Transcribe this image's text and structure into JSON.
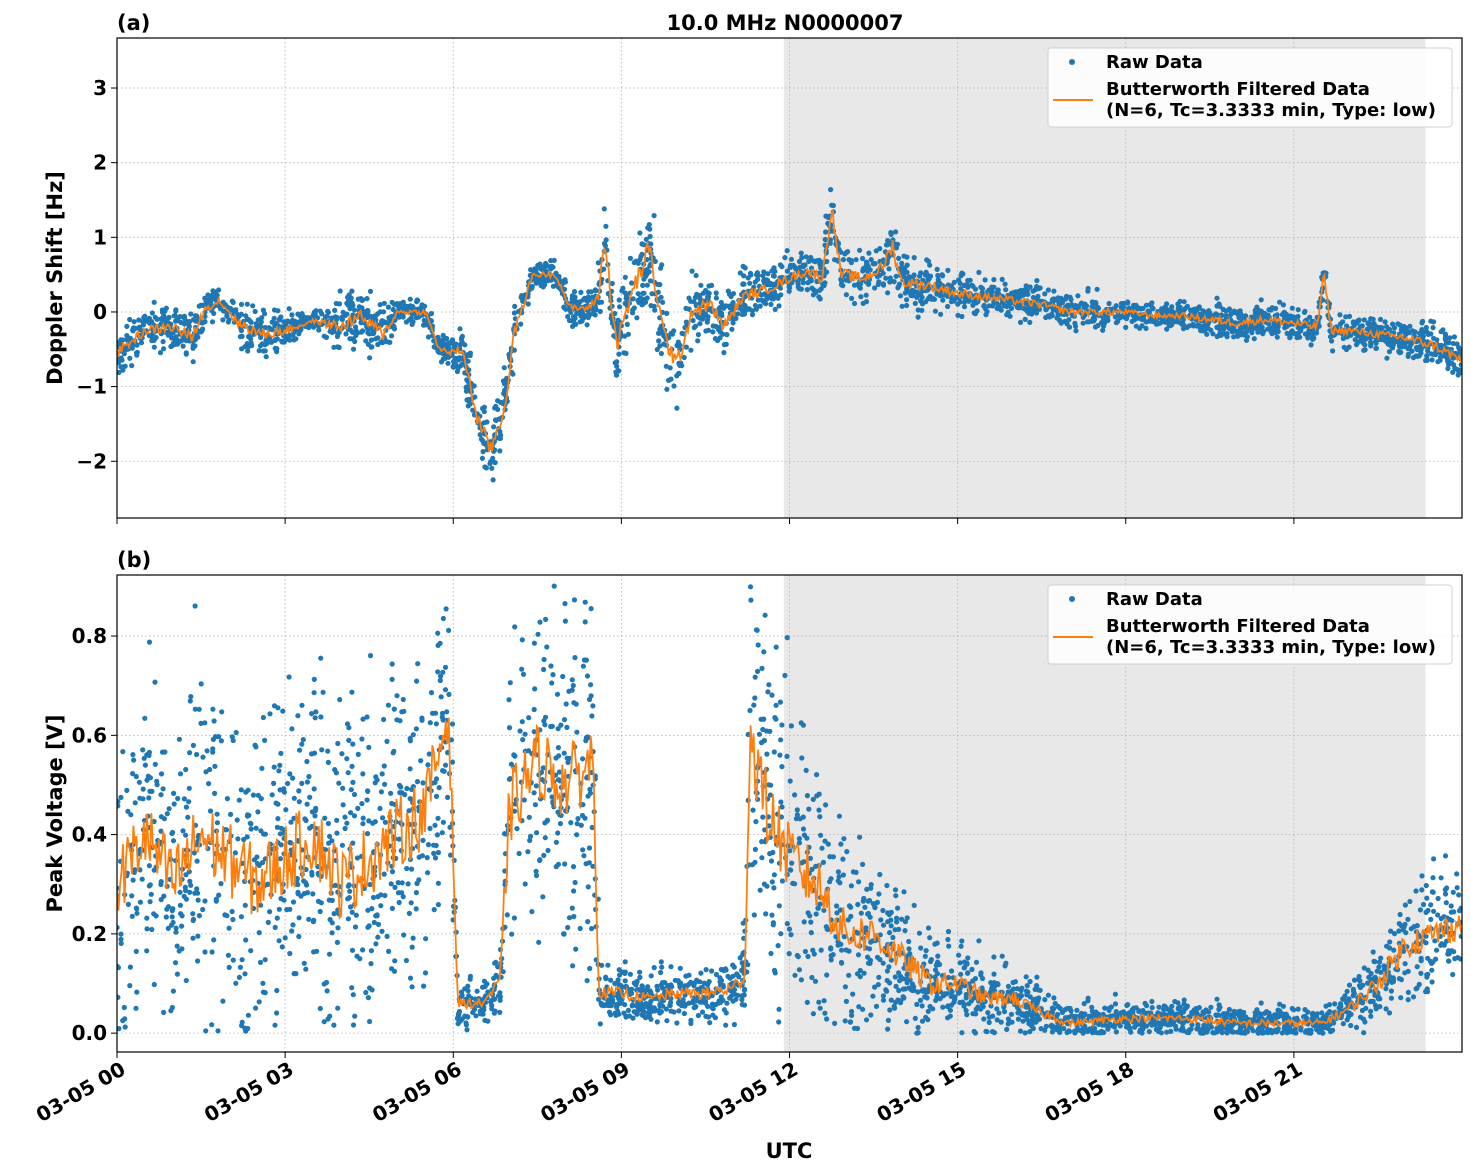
{
  "title": "10.0 MHz N0000007",
  "xlabel": "UTC",
  "date": "03-05",
  "xticks": [
    "03-05 00",
    "03-05 03",
    "03-05 06",
    "03-05 09",
    "03-05 12",
    "03-05 15",
    "03-05 18",
    "03-05 21"
  ],
  "colors": {
    "raw": "#1f77b4",
    "filtered": "#ff7f0e",
    "shade": "#e8e8e8"
  },
  "chart_data": [
    {
      "type": "scatter+line",
      "panel_label": "(a)",
      "ylabel": "Doppler Shift [Hz]",
      "ylim": [
        -2.76,
        3.67
      ],
      "yticks": [
        -2,
        -1,
        0,
        1,
        2,
        3
      ],
      "ytick_labels": [
        "−2",
        "−1",
        "0",
        "1",
        "2",
        "3"
      ],
      "xlim": [
        "00:00",
        "24:00"
      ],
      "grid": true,
      "shaded_region": [
        "11:54",
        "23:21"
      ],
      "legend": {
        "placement": "top-right",
        "entries": [
          "Raw Data",
          "Butterworth Filtered Data",
          "(N=6, Tc=3.3333 min, Type: low)"
        ]
      },
      "series": [
        {
          "name": "Butterworth Filtered Data (N=6, Tc=3.3333 min, Type: low)",
          "x": [
            "00:00",
            "00:30",
            "01:00",
            "01:20",
            "01:35",
            "01:50",
            "02:10",
            "02:35",
            "03:00",
            "03:30",
            "04:00",
            "04:20",
            "04:45",
            "05:00",
            "05:30",
            "05:45",
            "06:00",
            "06:10",
            "06:25",
            "06:40",
            "06:55",
            "07:05",
            "07:25",
            "07:50",
            "08:05",
            "08:25",
            "08:35",
            "08:42",
            "08:55",
            "09:10",
            "09:30",
            "09:45",
            "10:00",
            "10:15",
            "10:35",
            "10:50",
            "11:10",
            "11:35",
            "12:00",
            "12:20",
            "12:35",
            "12:45",
            "12:55",
            "13:20",
            "13:40",
            "13:50",
            "14:00",
            "14:30",
            "15:00",
            "15:30",
            "16:00",
            "16:30",
            "17:00",
            "17:30",
            "18:00",
            "18:30",
            "19:00",
            "19:30",
            "20:00",
            "20:30",
            "21:00",
            "21:25",
            "21:32",
            "21:40",
            "22:00",
            "22:30",
            "23:00",
            "23:30",
            "24:00"
          ],
          "y": [
            -0.55,
            -0.25,
            -0.2,
            -0.35,
            0.05,
            0.15,
            -0.15,
            -0.3,
            -0.25,
            -0.12,
            -0.2,
            -0.05,
            -0.3,
            0.0,
            0.0,
            -0.5,
            -0.55,
            -0.5,
            -1.4,
            -1.85,
            -1.3,
            -0.3,
            0.5,
            0.5,
            0.05,
            0.05,
            0.2,
            0.95,
            -0.45,
            0.2,
            0.85,
            -0.3,
            -0.7,
            0.0,
            0.1,
            -0.2,
            0.2,
            0.3,
            0.45,
            0.55,
            0.45,
            1.4,
            0.5,
            0.45,
            0.6,
            0.9,
            0.4,
            0.35,
            0.25,
            0.2,
            0.15,
            0.1,
            0.0,
            0.0,
            0.0,
            -0.05,
            -0.05,
            -0.1,
            -0.15,
            -0.1,
            -0.15,
            -0.2,
            0.5,
            -0.25,
            -0.25,
            -0.3,
            -0.35,
            -0.45,
            -0.65
          ]
        },
        {
          "name": "Raw Data",
          "spread": [
            0.25,
            0.25,
            0.3,
            0.3,
            0.2,
            0.2,
            0.25,
            0.3,
            0.25,
            0.1,
            0.35,
            0.3,
            0.35,
            0.15,
            0.15,
            0.15,
            0.2,
            0.25,
            0.4,
            0.45,
            0.35,
            0.3,
            0.15,
            0.15,
            0.2,
            0.15,
            0.25,
            0.6,
            0.5,
            0.6,
            0.6,
            0.6,
            0.5,
            0.4,
            0.35,
            0.35,
            0.3,
            0.25,
            0.25,
            0.25,
            0.3,
            0.4,
            0.35,
            0.3,
            0.3,
            0.5,
            0.3,
            0.3,
            0.25,
            0.2,
            0.2,
            0.2,
            0.2,
            0.2,
            0.15,
            0.15,
            0.15,
            0.2,
            0.2,
            0.2,
            0.2,
            0.2,
            0.3,
            0.2,
            0.2,
            0.2,
            0.25,
            0.25,
            0.3
          ]
        }
      ]
    },
    {
      "type": "scatter+line",
      "panel_label": "(b)",
      "ylabel": "Peak Voltage [V]",
      "ylim": [
        -0.038,
        0.923
      ],
      "yticks": [
        0.0,
        0.2,
        0.4,
        0.6,
        0.8
      ],
      "ytick_labels": [
        "0.0",
        "0.2",
        "0.4",
        "0.6",
        "0.8"
      ],
      "xlim": [
        "00:00",
        "24:00"
      ],
      "grid": true,
      "shaded_region": [
        "11:54",
        "23:21"
      ],
      "legend": {
        "placement": "top-right",
        "entries": [
          "Raw Data",
          "Butterworth Filtered Data",
          "(N=6, Tc=3.3333 min, Type: low)"
        ]
      },
      "series": [
        {
          "name": "Butterworth Filtered Data (N=6, Tc=3.3333 min, Type: low)",
          "x": [
            "00:00",
            "00:30",
            "01:00",
            "01:30",
            "02:00",
            "02:30",
            "03:00",
            "03:30",
            "04:00",
            "04:30",
            "05:00",
            "05:30",
            "05:55",
            "06:05",
            "06:30",
            "06:50",
            "07:00",
            "07:30",
            "08:00",
            "08:30",
            "08:36",
            "09:00",
            "09:30",
            "10:00",
            "10:30",
            "11:00",
            "11:12",
            "11:18",
            "11:36",
            "12:00",
            "12:30",
            "13:00",
            "13:30",
            "14:00",
            "14:30",
            "15:00",
            "15:30",
            "16:00",
            "16:30",
            "17:00",
            "18:00",
            "19:00",
            "20:00",
            "21:00",
            "21:30",
            "22:00",
            "22:30",
            "23:00",
            "23:30",
            "24:00"
          ],
          "y": [
            0.3,
            0.4,
            0.3,
            0.4,
            0.35,
            0.3,
            0.35,
            0.4,
            0.3,
            0.35,
            0.4,
            0.45,
            0.65,
            0.06,
            0.06,
            0.1,
            0.45,
            0.55,
            0.5,
            0.55,
            0.08,
            0.08,
            0.07,
            0.08,
            0.08,
            0.09,
            0.12,
            0.6,
            0.45,
            0.35,
            0.3,
            0.2,
            0.2,
            0.15,
            0.1,
            0.1,
            0.07,
            0.07,
            0.04,
            0.02,
            0.03,
            0.03,
            0.02,
            0.02,
            0.02,
            0.05,
            0.1,
            0.18,
            0.2,
            0.22
          ]
        },
        {
          "name": "Raw Data",
          "spread": [
            0.3,
            0.3,
            0.3,
            0.3,
            0.3,
            0.3,
            0.3,
            0.3,
            0.3,
            0.3,
            0.3,
            0.3,
            0.25,
            0.04,
            0.04,
            0.06,
            0.3,
            0.3,
            0.3,
            0.3,
            0.05,
            0.05,
            0.04,
            0.05,
            0.05,
            0.06,
            0.08,
            0.3,
            0.3,
            0.28,
            0.25,
            0.18,
            0.15,
            0.12,
            0.1,
            0.08,
            0.07,
            0.06,
            0.04,
            0.03,
            0.03,
            0.03,
            0.03,
            0.03,
            0.03,
            0.05,
            0.08,
            0.12,
            0.12,
            0.12
          ]
        }
      ]
    }
  ]
}
